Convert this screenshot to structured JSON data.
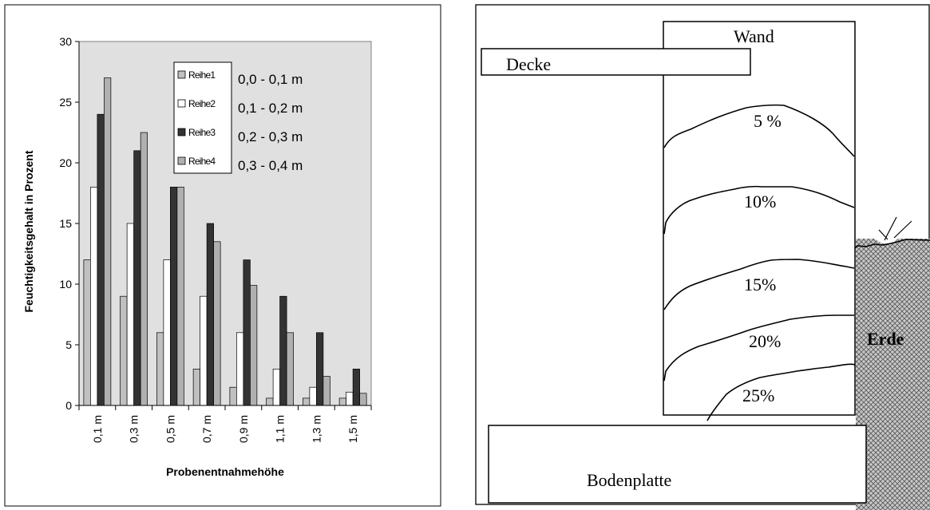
{
  "chart_data": {
    "type": "bar",
    "ylabel": "Feuchtigkeitsgehalt in Prozent",
    "xlabel": "Probenentnahmehöhe",
    "ylim": [
      0,
      30
    ],
    "yticks": [
      "0",
      "5",
      "10",
      "15",
      "20",
      "25",
      "30"
    ],
    "grid": false,
    "legend_position": "top-right",
    "categories": [
      "0,1 m",
      "0,3 m",
      "0,5 m",
      "0,7 m",
      "0,9 m",
      "1,1 m",
      "1,3 m",
      "1,5 m"
    ],
    "series": [
      {
        "name": "Reihe1",
        "range": "0,0 - 0,1 m",
        "color": "#c0c0c0",
        "values": [
          12,
          9,
          6,
          3,
          1.5,
          0.6,
          0.6,
          0.6
        ]
      },
      {
        "name": "Reihe2",
        "range": "0,1 - 0,2 m",
        "color": "#ffffff",
        "values": [
          18,
          15,
          12,
          9,
          6,
          3,
          1.5,
          1.1
        ]
      },
      {
        "name": "Reihe3",
        "range": "0,2 - 0,3 m",
        "color": "#333333",
        "values": [
          24,
          21,
          18,
          15,
          12,
          9,
          6,
          3
        ]
      },
      {
        "name": "Reihe4",
        "range": "0,3 - 0,4 m",
        "color": "#b0b0b0",
        "values": [
          27,
          22.5,
          18,
          13.5,
          9.9,
          6,
          2.4,
          1
        ]
      }
    ],
    "plot_background": "#e0e0e0"
  },
  "diagram": {
    "wall_label": "Wand",
    "ceiling_label": "Decke",
    "floor_label": "Bodenplatte",
    "soil_label": "Erde",
    "contours": [
      "5 %",
      "10%",
      "15%",
      "20%",
      "25%"
    ]
  }
}
